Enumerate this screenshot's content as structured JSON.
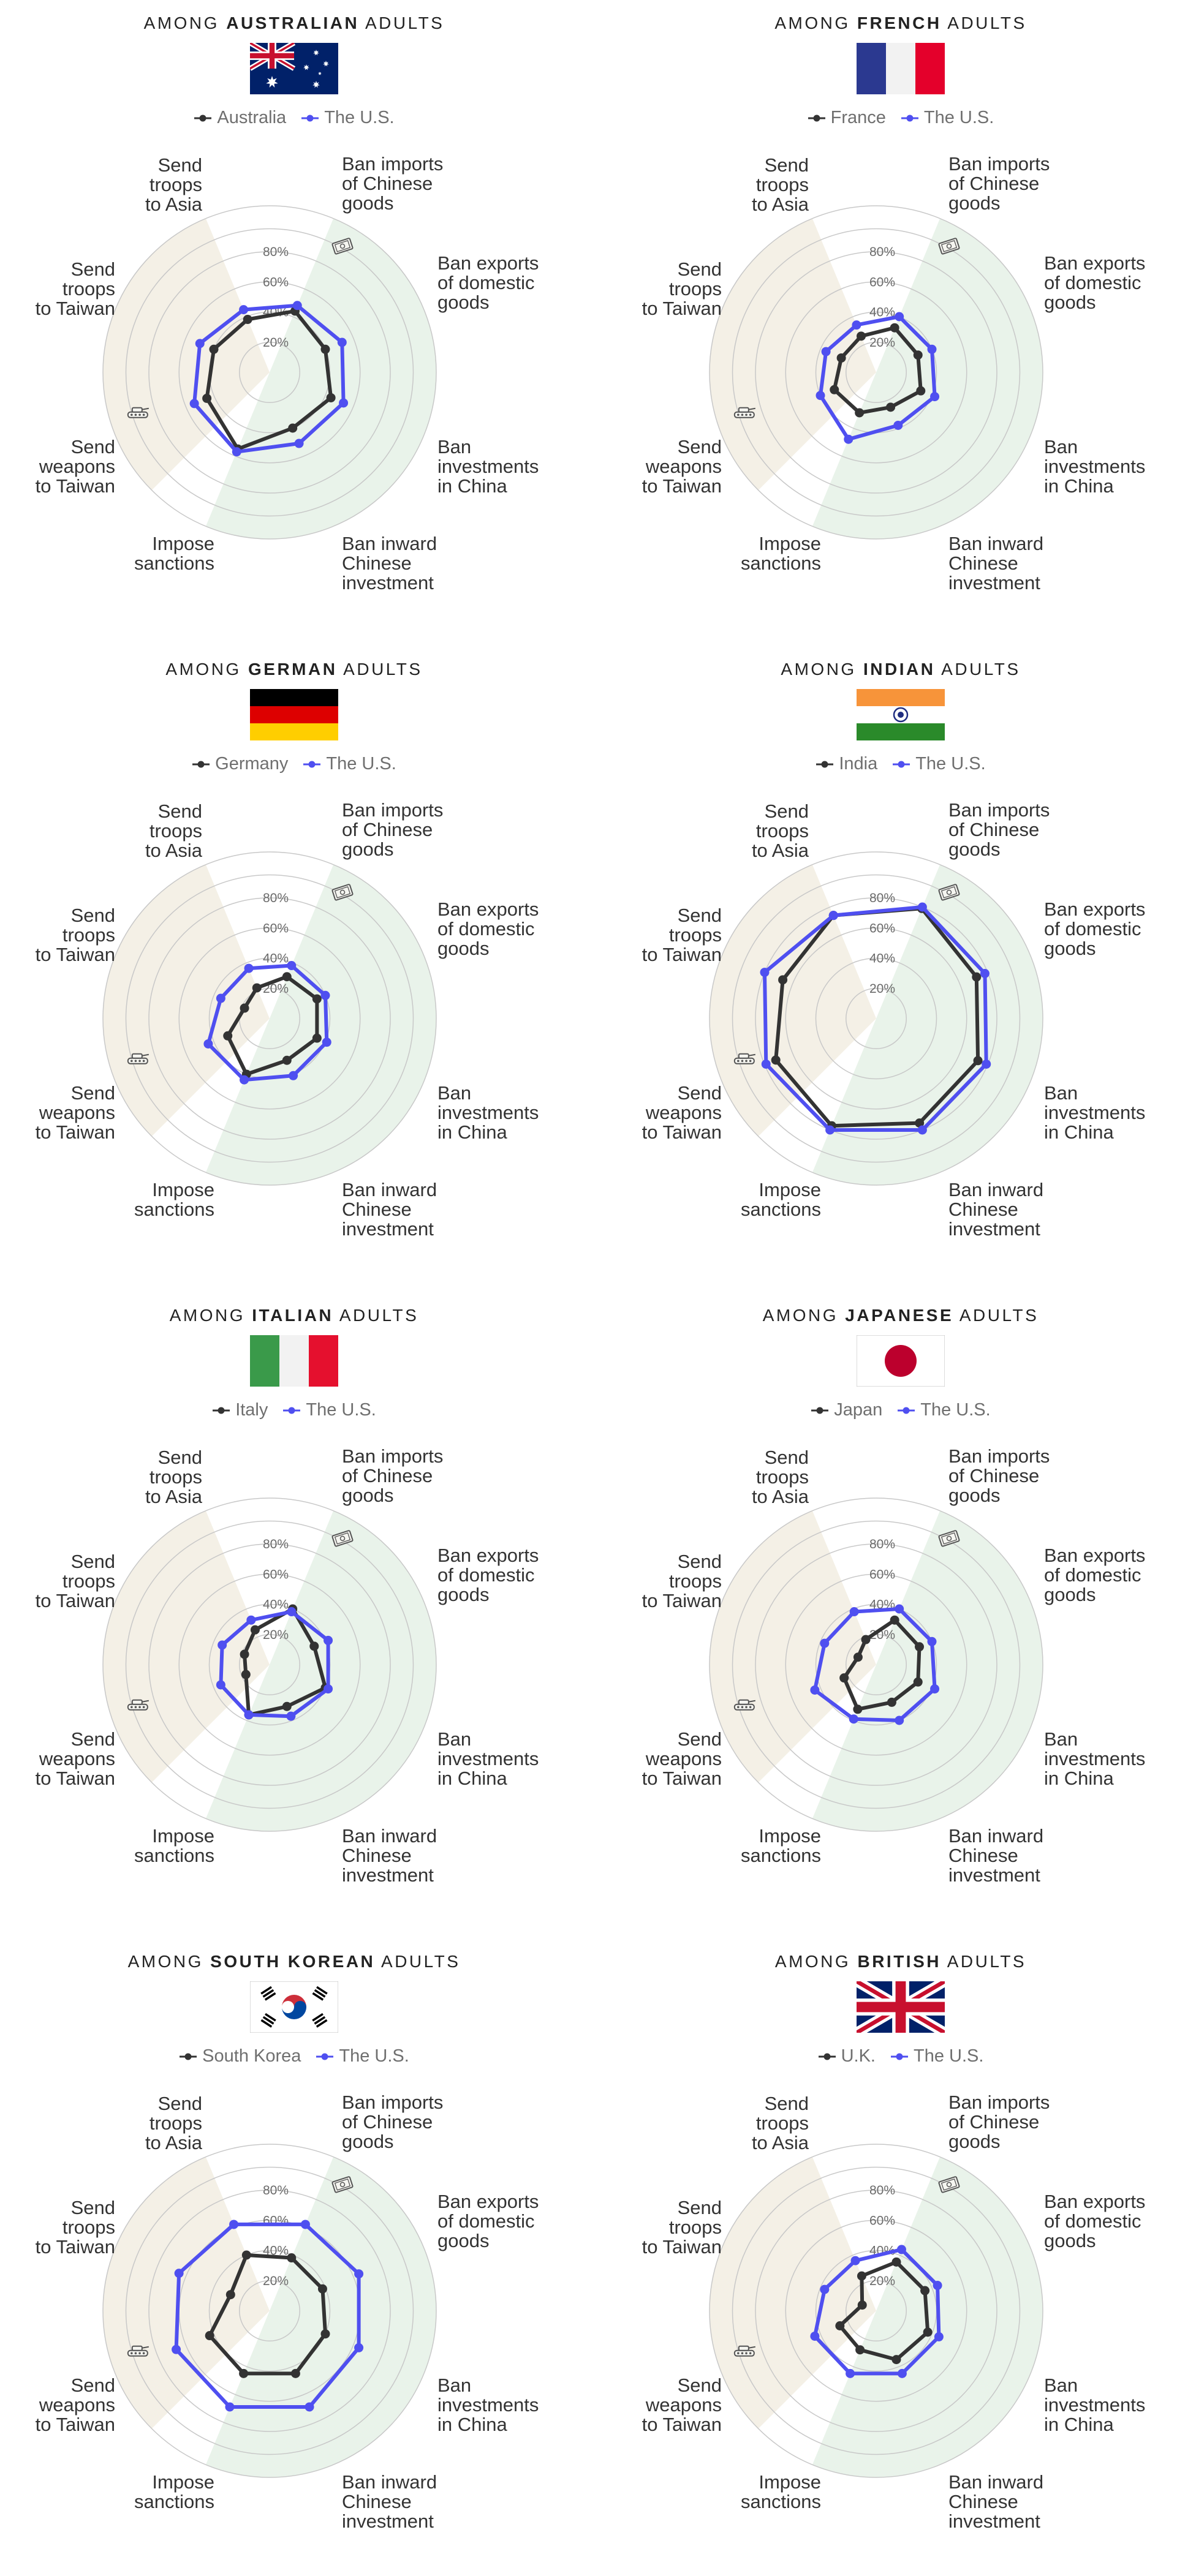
{
  "legend_us_label": "The U.S.",
  "colors": {
    "us_line": "#4f4ff0",
    "country_line": "#333333",
    "economic_sector": "#e9f3ea",
    "military_sector": "#f4f0e6",
    "grid": "#c8c8c8"
  },
  "icons": {
    "economic": "money-bill-icon",
    "military": "tank-icon"
  },
  "chart_data": [
    {
      "type": "radar",
      "title_prefix": "AMONG ",
      "title_bold": "AUSTRALIAN",
      "title_suffix": " ADULTS",
      "flag": "australia-flag",
      "country_label": "Australia",
      "us_label": "The U.S.",
      "axes": [
        [
          "Ban imports",
          "of Chinese",
          "goods"
        ],
        [
          "Ban exports",
          "of domestic",
          "goods"
        ],
        [
          "Ban",
          "investments",
          "in China"
        ],
        [
          "Ban inward",
          "Chinese",
          "investment"
        ],
        [
          "Impose",
          "sanctions"
        ],
        [
          "Send",
          "weapons",
          "to Taiwan"
        ],
        [
          "Send",
          "troops",
          "to Taiwan"
        ],
        [
          "Send",
          "troops",
          "to Asia"
        ]
      ],
      "ticks": [
        "20%",
        "40%",
        "60%",
        "80%"
      ],
      "rlim": [
        0,
        80
      ],
      "series": [
        {
          "name": "Australia",
          "values": [
            44,
            40,
            44,
            40,
            55,
            45,
            40,
            38
          ]
        },
        {
          "name": "The U.S.",
          "values": [
            48,
            52,
            53,
            51,
            57,
            54,
            50,
            45
          ]
        }
      ]
    },
    {
      "type": "radar",
      "title_prefix": "AMONG ",
      "title_bold": "FRENCH",
      "title_suffix": " ADULTS",
      "flag": "france-flag",
      "country_label": "France",
      "us_label": "The U.S.",
      "axes": [
        [
          "Ban imports",
          "of Chinese",
          "goods"
        ],
        [
          "Ban exports",
          "of domestic",
          "goods"
        ],
        [
          "Ban",
          "investments",
          "in China"
        ],
        [
          "Ban inward",
          "Chinese",
          "investment"
        ],
        [
          "Impose",
          "sanctions"
        ],
        [
          "Send",
          "weapons",
          "to Taiwan"
        ],
        [
          "Send",
          "troops",
          "to Taiwan"
        ],
        [
          "Send",
          "troops",
          "to Asia"
        ]
      ],
      "ticks": [
        "20%",
        "40%",
        "60%",
        "80%"
      ],
      "rlim": [
        0,
        80
      ],
      "series": [
        {
          "name": "France",
          "values": [
            32,
            30,
            32,
            25,
            29,
            30,
            25,
            26
          ]
        },
        {
          "name": "The U.S.",
          "values": [
            40,
            40,
            42,
            38,
            48,
            40,
            36,
            34
          ]
        }
      ]
    },
    {
      "type": "radar",
      "title_prefix": "AMONG ",
      "title_bold": "GERMAN",
      "title_suffix": " ADULTS",
      "flag": "germany-flag",
      "country_label": "Germany",
      "us_label": "The U.S.",
      "axes": [
        [
          "Ban imports",
          "of Chinese",
          "goods"
        ],
        [
          "Ban exports",
          "of domestic",
          "goods"
        ],
        [
          "Ban",
          "investments",
          "in China"
        ],
        [
          "Ban inward",
          "Chinese",
          "investment"
        ],
        [
          "Impose",
          "sanctions"
        ],
        [
          "Send",
          "weapons",
          "to Taiwan"
        ],
        [
          "Send",
          "troops",
          "to Taiwan"
        ],
        [
          "Send",
          "troops",
          "to Asia"
        ]
      ],
      "ticks": [
        "20%",
        "40%",
        "60%",
        "80%"
      ],
      "rlim": [
        0,
        80
      ],
      "series": [
        {
          "name": "Germany",
          "values": [
            30,
            34,
            34,
            30,
            40,
            30,
            18,
            22
          ]
        },
        {
          "name": "The U.S.",
          "values": [
            38,
            40,
            41,
            41,
            44,
            44,
            35,
            36
          ]
        }
      ]
    },
    {
      "type": "radar",
      "title_prefix": "AMONG ",
      "title_bold": "INDIAN",
      "title_suffix": " ADULTS",
      "flag": "india-flag",
      "country_label": "India",
      "us_label": "The U.S.",
      "axes": [
        [
          "Ban imports",
          "of Chinese",
          "goods"
        ],
        [
          "Ban exports",
          "of domestic",
          "goods"
        ],
        [
          "Ban",
          "investments",
          "in China"
        ],
        [
          "Ban inward",
          "Chinese",
          "investment"
        ],
        [
          "Impose",
          "sanctions"
        ],
        [
          "Send",
          "weapons",
          "to Taiwan"
        ],
        [
          "Send",
          "troops",
          "to Taiwan"
        ],
        [
          "Send",
          "troops",
          "to Asia"
        ]
      ],
      "ticks": [
        "20%",
        "40%",
        "60%",
        "80%"
      ],
      "rlim": [
        0,
        80
      ],
      "series": [
        {
          "name": "India",
          "values": [
            79,
            72,
            73,
            75,
            77,
            72,
            67,
            74
          ]
        },
        {
          "name": "The U.S.",
          "values": [
            80,
            78,
            79,
            80,
            80,
            79,
            80,
            74
          ]
        }
      ]
    },
    {
      "type": "radar",
      "title_prefix": "AMONG ",
      "title_bold": "ITALIAN",
      "title_suffix": " ADULTS",
      "flag": "italy-flag",
      "country_label": "Italy",
      "us_label": "The U.S.",
      "axes": [
        [
          "Ban imports",
          "of Chinese",
          "goods"
        ],
        [
          "Ban exports",
          "of domestic",
          "goods"
        ],
        [
          "Ban",
          "investments",
          "in China"
        ],
        [
          "Ban inward",
          "Chinese",
          "investment"
        ],
        [
          "Impose",
          "sanctions"
        ],
        [
          "Send",
          "weapons",
          "to Taiwan"
        ],
        [
          "Send",
          "troops",
          "to Taiwan"
        ],
        [
          "Send",
          "troops",
          "to Asia"
        ]
      ],
      "ticks": [
        "20%",
        "40%",
        "60%",
        "80%"
      ],
      "rlim": [
        0,
        80
      ],
      "series": [
        {
          "name": "Italy",
          "values": [
            40,
            32,
            40,
            30,
            36,
            17,
            18,
            25
          ]
        },
        {
          "name": "The U.S.",
          "values": [
            38,
            42,
            42,
            37,
            36,
            35,
            34,
            32
          ]
        }
      ]
    },
    {
      "type": "radar",
      "title_prefix": "AMONG ",
      "title_bold": "JAPANESE",
      "title_suffix": " ADULTS",
      "flag": "japan-flag",
      "country_label": "Japan",
      "us_label": "The U.S.",
      "axes": [
        [
          "Ban imports",
          "of Chinese",
          "goods"
        ],
        [
          "Ban exports",
          "of domestic",
          "goods"
        ],
        [
          "Ban",
          "investments",
          "in China"
        ],
        [
          "Ban inward",
          "Chinese",
          "investment"
        ],
        [
          "Impose",
          "sanctions"
        ],
        [
          "Send",
          "weapons",
          "to Taiwan"
        ],
        [
          "Send",
          "troops",
          "to Taiwan"
        ],
        [
          "Send",
          "troops",
          "to Asia"
        ]
      ],
      "ticks": [
        "20%",
        "40%",
        "60%",
        "80%"
      ],
      "rlim": [
        0,
        80
      ],
      "series": [
        {
          "name": "Japan",
          "values": [
            32,
            31,
            30,
            27,
            32,
            23,
            13,
            18
          ]
        },
        {
          "name": "The U.S.",
          "values": [
            40,
            40,
            42,
            40,
            39,
            44,
            37,
            38
          ]
        }
      ]
    },
    {
      "type": "radar",
      "title_prefix": "AMONG ",
      "title_bold": "SOUTH KOREAN",
      "title_suffix": " ADULTS",
      "flag": "south-korea-flag",
      "country_label": "South Korea",
      "us_label": "The U.S.",
      "axes": [
        [
          "Ban imports",
          "of Chinese",
          "goods"
        ],
        [
          "Ban exports",
          "of domestic",
          "goods"
        ],
        [
          "Ban",
          "investments",
          "in China"
        ],
        [
          "Ban inward",
          "Chinese",
          "investment"
        ],
        [
          "Impose",
          "sanctions"
        ],
        [
          "Send",
          "weapons",
          "to Taiwan"
        ],
        [
          "Send",
          "troops",
          "to Taiwan"
        ],
        [
          "Send",
          "troops",
          "to Asia"
        ]
      ],
      "ticks": [
        "20%",
        "40%",
        "60%",
        "80%"
      ],
      "rlim": [
        0,
        80
      ],
      "series": [
        {
          "name": "South Korea",
          "values": [
            38,
            38,
            40,
            45,
            45,
            43,
            28,
            40
          ]
        },
        {
          "name": "The U.S.",
          "values": [
            62,
            64,
            64,
            69,
            69,
            67,
            65,
            62
          ]
        }
      ]
    },
    {
      "type": "radar",
      "title_prefix": "AMONG ",
      "title_bold": "BRITISH",
      "title_suffix": " ADULTS",
      "flag": "uk-flag",
      "country_label": "U.K.",
      "us_label": "The U.S.",
      "axes": [
        [
          "Ban imports",
          "of Chinese",
          "goods"
        ],
        [
          "Ban exports",
          "of domestic",
          "goods"
        ],
        [
          "Ban",
          "investments",
          "in China"
        ],
        [
          "Ban inward",
          "Chinese",
          "investment"
        ],
        [
          "Impose",
          "sanctions"
        ],
        [
          "Send",
          "weapons",
          "to Taiwan"
        ],
        [
          "Send",
          "troops",
          "to Taiwan"
        ],
        [
          "Send",
          "troops",
          "to Asia"
        ]
      ],
      "ticks": [
        "20%",
        "40%",
        "60%",
        "80%"
      ],
      "rlim": [
        0,
        80
      ],
      "series": [
        {
          "name": "U.K.",
          "values": [
            35,
            35,
            37,
            35,
            28,
            26,
            10,
            25
          ]
        },
        {
          "name": "The U.S.",
          "values": [
            44,
            44,
            45,
            45,
            45,
            44,
            37,
            36
          ]
        }
      ]
    }
  ]
}
